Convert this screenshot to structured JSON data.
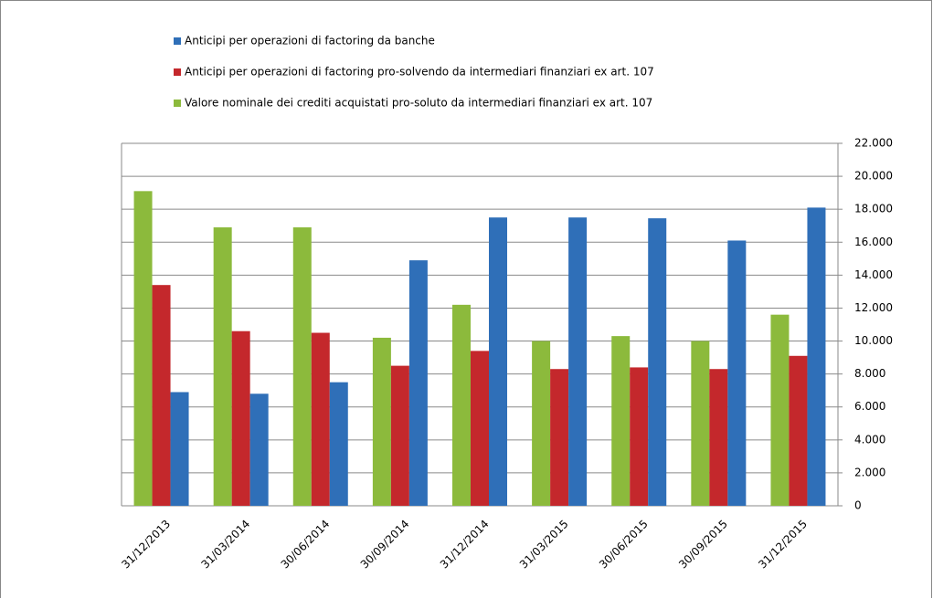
{
  "chart_data": {
    "type": "bar",
    "categories": [
      "31/12/2013",
      "31/03/2014",
      "30/06/2014",
      "30/09/2014",
      "31/12/2014",
      "31/03/2015",
      "30/06/2015",
      "30/09/2015",
      "31/12/2015"
    ],
    "series": [
      {
        "name": "Anticipi per operazioni di factoring da banche",
        "color": "#2f6fb8",
        "values": [
          6900,
          6800,
          7500,
          14900,
          17500,
          17500,
          17450,
          16100,
          18100
        ]
      },
      {
        "name": "Anticipi per operazioni di factoring pro-solvendo da intermediari finanziari ex art. 107",
        "color": "#c4282c",
        "values": [
          13400,
          10600,
          10500,
          8500,
          9400,
          8300,
          8400,
          8300,
          9100
        ]
      },
      {
        "name": "Valore nominale dei crediti acquistati pro-soluto da intermediari finanziari ex art. 107",
        "color": "#8cba3c",
        "values": [
          19100,
          16900,
          16900,
          10200,
          12200,
          10000,
          10300,
          10000,
          11600
        ]
      }
    ],
    "ylim": [
      0,
      22000
    ],
    "yticks": [
      0,
      {
        "value": 2000,
        "label": "2.000"
      },
      {
        "value": 4000,
        "label": "4.000"
      },
      {
        "value": 6000,
        "label": "6.000"
      },
      {
        "value": 8000,
        "label": "8.000"
      },
      {
        "value": 10000,
        "label": "10.000"
      },
      {
        "value": 12000,
        "label": "12.000"
      },
      {
        "value": 14000,
        "label": "14.000"
      },
      {
        "value": 16000,
        "label": "16.000"
      },
      {
        "value": 18000,
        "label": "18.000"
      },
      {
        "value": 20000,
        "label": "20.000"
      },
      {
        "value": 22000,
        "label": "22.000"
      }
    ],
    "grid": true,
    "legend": "top"
  }
}
